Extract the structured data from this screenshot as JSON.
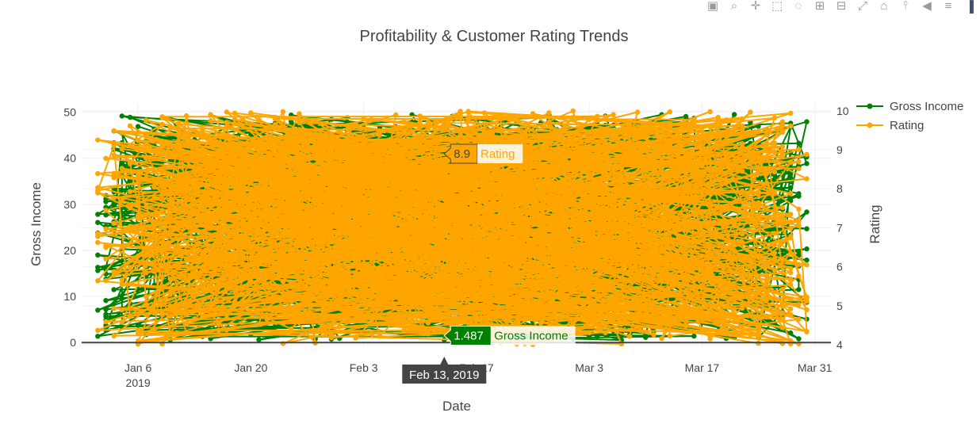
{
  "modebar": {
    "icons": [
      "camera-icon",
      "zoom-icon",
      "pan-icon",
      "box-select-icon",
      "lasso-icon",
      "zoom-in-icon",
      "zoom-out-icon",
      "autoscale-icon",
      "reset-axes-icon",
      "spike-lines-icon",
      "hover-closest-icon",
      "hover-compare-icon",
      "plotly-logo-icon"
    ]
  },
  "chart_data": {
    "type": "line",
    "title": "Profitability & Customer Rating Trends",
    "xlabel": "Date",
    "ylabel": "Gross Income",
    "y2label": "Rating",
    "x_range": [
      "2018-12-30",
      "2019-04-02"
    ],
    "ylim": [
      -1,
      52
    ],
    "y2lim": [
      3.94,
      10.2
    ],
    "x_ticks": [
      {
        "date": "2019-01-06",
        "label": "Jan 6",
        "sub": "2019"
      },
      {
        "date": "2019-01-20",
        "label": "Jan 20",
        "sub": ""
      },
      {
        "date": "2019-02-03",
        "label": "Feb 3",
        "sub": ""
      },
      {
        "date": "2019-02-17",
        "label": "Feb 17",
        "sub": ""
      },
      {
        "date": "2019-03-03",
        "label": "Mar 3",
        "sub": ""
      },
      {
        "date": "2019-03-17",
        "label": "Mar 17",
        "sub": ""
      },
      {
        "date": "2019-03-31",
        "label": "Mar 31",
        "sub": ""
      }
    ],
    "y_ticks": [
      0,
      10,
      20,
      30,
      40,
      50
    ],
    "y2_ticks": [
      4,
      5,
      6,
      7,
      8,
      9,
      10
    ],
    "grid": true,
    "legend": "top-right",
    "series": [
      {
        "name": "Gross Income",
        "axis": "y",
        "color": "#008000",
        "date_range": [
          "2019-01-01",
          "2019-03-30"
        ],
        "value_range": [
          0.5,
          49.6
        ],
        "point_count": 1000
      },
      {
        "name": "Rating",
        "axis": "y2",
        "color": "#FFA500",
        "date_range": [
          "2019-01-01",
          "2019-03-30"
        ],
        "value_range": [
          4.0,
          10.0
        ],
        "point_count": 1000
      }
    ],
    "hover": {
      "x_label": "Feb 13, 2019",
      "x_date": "2019-02-13",
      "labels": [
        {
          "series": "Rating",
          "value": "8.9",
          "value_num": 8.9,
          "axis": "y2",
          "color": "#FFA500"
        },
        {
          "series": "Gross Income",
          "value": "1.487",
          "value_num": 1.487,
          "axis": "y",
          "color": "#008000"
        }
      ]
    }
  }
}
